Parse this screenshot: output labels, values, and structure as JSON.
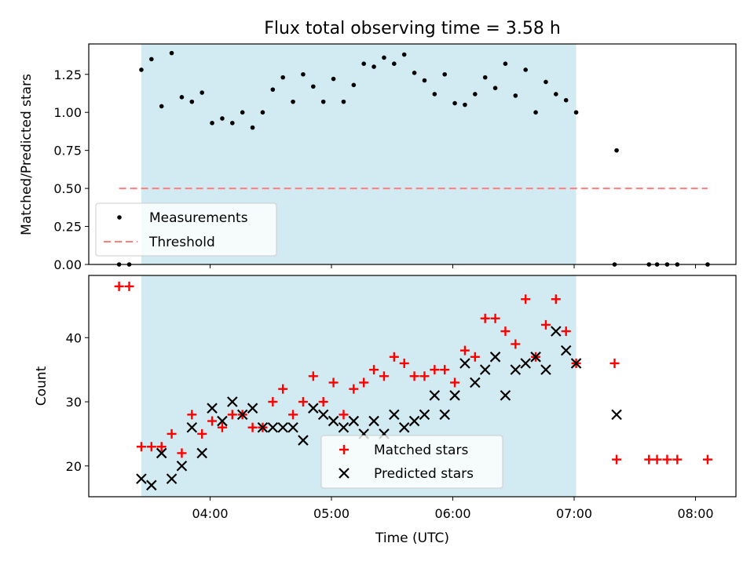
{
  "chart_data": [
    {
      "type": "scatter",
      "title": "Flux total observing time = 3.58 h",
      "ylabel": "Matched/Predicted stars",
      "xlabel": "",
      "x_unit": "hours UTC",
      "xlim": [
        "03:00",
        "08:20"
      ],
      "ylim": [
        0,
        1.45
      ],
      "yticks": [
        "0.00",
        "0.25",
        "0.50",
        "0.75",
        "1.00",
        "1.25"
      ],
      "shaded_span": [
        "03:26",
        "07:01"
      ],
      "shaded_color": "#add8e6",
      "legend_position": "lower-left",
      "legend": [
        "Measurements",
        "Threshold"
      ],
      "threshold": {
        "name": "Threshold",
        "y": 0.5,
        "x_range": [
          "03:15",
          "08:06"
        ],
        "color": "#ff7f7f",
        "style": "dashed"
      },
      "series": [
        {
          "name": "Measurements",
          "color": "#000000",
          "points": [
            [
              "03:15",
              0.0
            ],
            [
              "03:20",
              0.0
            ],
            [
              "03:26",
              1.28
            ],
            [
              "03:31",
              1.35
            ],
            [
              "03:36",
              1.04
            ],
            [
              "03:41",
              1.39
            ],
            [
              "03:46",
              1.1
            ],
            [
              "03:51",
              1.07
            ],
            [
              "03:56",
              1.13
            ],
            [
              "04:01",
              0.93
            ],
            [
              "04:06",
              0.96
            ],
            [
              "04:11",
              0.93
            ],
            [
              "04:16",
              1.0
            ],
            [
              "04:21",
              0.9
            ],
            [
              "04:26",
              1.0
            ],
            [
              "04:31",
              1.15
            ],
            [
              "04:36",
              1.23
            ],
            [
              "04:41",
              1.07
            ],
            [
              "04:46",
              1.25
            ],
            [
              "04:51",
              1.17
            ],
            [
              "04:56",
              1.07
            ],
            [
              "05:01",
              1.22
            ],
            [
              "05:06",
              1.07
            ],
            [
              "05:11",
              1.18
            ],
            [
              "05:16",
              1.32
            ],
            [
              "05:21",
              1.3
            ],
            [
              "05:26",
              1.36
            ],
            [
              "05:31",
              1.32
            ],
            [
              "05:36",
              1.38
            ],
            [
              "05:41",
              1.26
            ],
            [
              "05:46",
              1.21
            ],
            [
              "05:51",
              1.12
            ],
            [
              "05:56",
              1.25
            ],
            [
              "06:01",
              1.06
            ],
            [
              "06:06",
              1.05
            ],
            [
              "06:11",
              1.12
            ],
            [
              "06:16",
              1.23
            ],
            [
              "06:21",
              1.16
            ],
            [
              "06:26",
              1.32
            ],
            [
              "06:31",
              1.11
            ],
            [
              "06:36",
              1.28
            ],
            [
              "06:41",
              1.0
            ],
            [
              "06:46",
              1.2
            ],
            [
              "06:51",
              1.12
            ],
            [
              "06:56",
              1.08
            ],
            [
              "07:01",
              1.0
            ],
            [
              "07:20",
              0.0
            ],
            [
              "07:21",
              0.75
            ],
            [
              "07:37",
              0.0
            ],
            [
              "07:41",
              0.0
            ],
            [
              "07:46",
              0.0
            ],
            [
              "07:51",
              0.0
            ],
            [
              "08:06",
              0.0
            ]
          ]
        }
      ]
    },
    {
      "type": "scatter",
      "title": "",
      "ylabel": "Count",
      "xlabel": "Time (UTC)",
      "xlim": [
        "03:00",
        "08:20"
      ],
      "ylim": [
        15.2,
        49.7
      ],
      "yticks": [
        "20",
        "30",
        "40"
      ],
      "xticks": [
        "04:00",
        "05:00",
        "06:00",
        "07:00",
        "08:00"
      ],
      "shaded_span": [
        "03:26",
        "07:01"
      ],
      "legend_position": "bottom-center",
      "legend": [
        "Matched stars",
        "Predicted stars"
      ],
      "series": [
        {
          "name": "Matched stars",
          "marker": "plus",
          "color": "#ff0000",
          "points": [
            [
              "03:15",
              48
            ],
            [
              "03:20",
              48
            ],
            [
              "03:26",
              23
            ],
            [
              "03:31",
              23
            ],
            [
              "03:36",
              23
            ],
            [
              "03:41",
              25
            ],
            [
              "03:46",
              22
            ],
            [
              "03:51",
              28
            ],
            [
              "03:56",
              25
            ],
            [
              "04:01",
              27
            ],
            [
              "04:06",
              26
            ],
            [
              "04:11",
              28
            ],
            [
              "04:16",
              28
            ],
            [
              "04:21",
              26
            ],
            [
              "04:26",
              26
            ],
            [
              "04:31",
              30
            ],
            [
              "04:36",
              32
            ],
            [
              "04:41",
              28
            ],
            [
              "04:46",
              30
            ],
            [
              "04:51",
              34
            ],
            [
              "04:56",
              30
            ],
            [
              "05:01",
              33
            ],
            [
              "05:06",
              28
            ],
            [
              "05:11",
              32
            ],
            [
              "05:16",
              33
            ],
            [
              "05:21",
              35
            ],
            [
              "05:26",
              34
            ],
            [
              "05:31",
              37
            ],
            [
              "05:36",
              36
            ],
            [
              "05:41",
              34
            ],
            [
              "05:46",
              34
            ],
            [
              "05:51",
              35
            ],
            [
              "05:56",
              35
            ],
            [
              "06:01",
              33
            ],
            [
              "06:06",
              38
            ],
            [
              "06:11",
              37
            ],
            [
              "06:16",
              43
            ],
            [
              "06:21",
              43
            ],
            [
              "06:26",
              41
            ],
            [
              "06:31",
              39
            ],
            [
              "06:36",
              46
            ],
            [
              "06:41",
              37
            ],
            [
              "06:46",
              42
            ],
            [
              "06:51",
              46
            ],
            [
              "06:56",
              41
            ],
            [
              "07:01",
              36
            ],
            [
              "07:20",
              36
            ],
            [
              "07:21",
              21
            ],
            [
              "07:37",
              21
            ],
            [
              "07:41",
              21
            ],
            [
              "07:46",
              21
            ],
            [
              "07:51",
              21
            ],
            [
              "08:06",
              21
            ]
          ]
        },
        {
          "name": "Predicted stars",
          "marker": "x",
          "color": "#000000",
          "points": [
            [
              "03:26",
              18
            ],
            [
              "03:31",
              17
            ],
            [
              "03:36",
              22
            ],
            [
              "03:41",
              18
            ],
            [
              "03:46",
              20
            ],
            [
              "03:51",
              26
            ],
            [
              "03:56",
              22
            ],
            [
              "04:01",
              29
            ],
            [
              "04:06",
              27
            ],
            [
              "04:11",
              30
            ],
            [
              "04:16",
              28
            ],
            [
              "04:21",
              29
            ],
            [
              "04:26",
              26
            ],
            [
              "04:31",
              26
            ],
            [
              "04:36",
              26
            ],
            [
              "04:41",
              26
            ],
            [
              "04:46",
              24
            ],
            [
              "04:51",
              29
            ],
            [
              "04:56",
              28
            ],
            [
              "05:01",
              27
            ],
            [
              "05:06",
              26
            ],
            [
              "05:11",
              27
            ],
            [
              "05:16",
              25
            ],
            [
              "05:21",
              27
            ],
            [
              "05:26",
              25
            ],
            [
              "05:31",
              28
            ],
            [
              "05:36",
              26
            ],
            [
              "05:41",
              27
            ],
            [
              "05:46",
              28
            ],
            [
              "05:51",
              31
            ],
            [
              "05:56",
              28
            ],
            [
              "06:01",
              31
            ],
            [
              "06:06",
              36
            ],
            [
              "06:11",
              33
            ],
            [
              "06:16",
              35
            ],
            [
              "06:21",
              37
            ],
            [
              "06:26",
              31
            ],
            [
              "06:31",
              35
            ],
            [
              "06:36",
              36
            ],
            [
              "06:41",
              37
            ],
            [
              "06:46",
              35
            ],
            [
              "06:51",
              41
            ],
            [
              "06:56",
              38
            ],
            [
              "07:01",
              36
            ],
            [
              "07:21",
              28
            ]
          ]
        }
      ]
    }
  ]
}
